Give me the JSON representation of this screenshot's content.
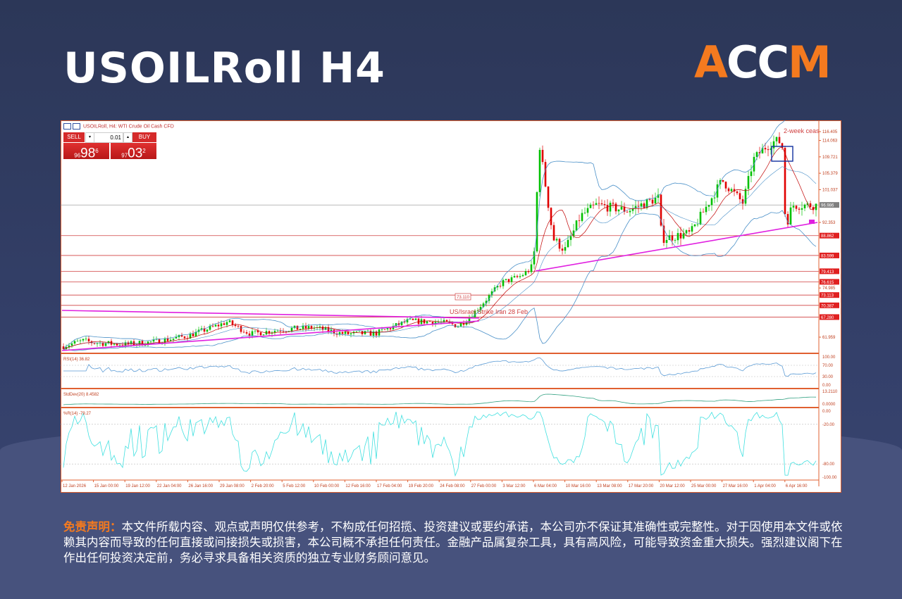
{
  "header": {
    "title": "USOILRoll H4",
    "logo_text": "ACCM"
  },
  "chart_header": {
    "symbol_label": "USOILRoll, H4:  WTI Crude Oil Cash CFD"
  },
  "trade_panel": {
    "sell_label": "SELL",
    "buy_label": "BUY",
    "lot": "0.01",
    "sell_price": {
      "prefix": "96",
      "big": "98",
      "sup": "6"
    },
    "buy_price": {
      "prefix": "97",
      "big": "03",
      "sup": "2"
    }
  },
  "colors": {
    "up": "#00c000",
    "down": "#e00000",
    "bands": "#4a90c8",
    "ma": "#c00000",
    "trendline": "#e020e0",
    "level": "#d04040",
    "rsi": "#5b9bd5",
    "wpr": "#40e0e0",
    "bg_title": "#2c3758",
    "accent": "#f47a1f"
  },
  "chart_data": {
    "type": "candlestick",
    "title": "USOILRoll H4",
    "timeframe": "H4",
    "price_axis": [
      "116.405",
      "114.063",
      "109.721",
      "105.379",
      "101.037",
      "92.353",
      "74.985",
      "61.959"
    ],
    "ylim": [
      58.5,
      117.5
    ],
    "current_price": "96.986",
    "levels": [
      "88.862",
      "83.599",
      "79.413",
      "76.615",
      "73.113",
      "70.387",
      "67.280"
    ],
    "x_ticks": [
      "12 Jan 2026",
      "15 Jan 00:00",
      "19 Jan 12:00",
      "22 Jan 04:00",
      "26 Jan 16:00",
      "29 Jan 08:00",
      "2 Feb 20:00",
      "5 Feb 12:00",
      "10 Feb 00:00",
      "12 Feb 16:00",
      "17 Feb 04:00",
      "19 Feb 20:00",
      "24 Feb 08:00",
      "27 Feb 00:00",
      "3 Mar 12:00",
      "6 Mar 04:00",
      "10 Mar 16:00",
      "13 Mar 08:00",
      "17 Mar 20:00",
      "20 Mar 12:00",
      "25 Mar 00:00",
      "27 Mar 16:00",
      "1 Apr 04:00",
      "6 Apr 16:00"
    ],
    "price_path": [
      {
        "date": "12 Jan 00:00",
        "price": 59.5
      },
      {
        "date": "14 Jan 00:00",
        "price": 61.0
      },
      {
        "date": "15 Jan 00:00",
        "price": 60.5
      },
      {
        "date": "19 Jan 12:00",
        "price": 60.0
      },
      {
        "date": "22 Jan 04:00",
        "price": 60.8
      },
      {
        "date": "26 Jan 16:00",
        "price": 62.3
      },
      {
        "date": "29 Jan 08:00",
        "price": 65.2
      },
      {
        "date": "30 Jan 12:00",
        "price": 66.0
      },
      {
        "date": "2 Feb 20:00",
        "price": 62.8
      },
      {
        "date": "5 Feb 12:00",
        "price": 64.0
      },
      {
        "date": "10 Feb 00:00",
        "price": 64.5
      },
      {
        "date": "12 Feb 16:00",
        "price": 62.8
      },
      {
        "date": "17 Feb 04:00",
        "price": 63.0
      },
      {
        "date": "19 Feb 20:00",
        "price": 66.2
      },
      {
        "date": "24 Feb 08:00",
        "price": 66.0
      },
      {
        "date": "26 Feb 00:00",
        "price": 65.0
      },
      {
        "date": "27 Feb 00:00",
        "price": 67.5
      },
      {
        "date": "2 Mar 00:00",
        "price": 73.5
      },
      {
        "date": "3 Mar 12:00",
        "price": 76.5
      },
      {
        "date": "5 Mar 00:00",
        "price": 78.0
      },
      {
        "date": "6 Mar 04:00",
        "price": 80.5
      },
      {
        "date": "6 Mar 16:00",
        "price": 100.0
      },
      {
        "date": "7 Mar 00:00",
        "price": 113.5
      },
      {
        "date": "9 Mar 00:00",
        "price": 88.0
      },
      {
        "date": "10 Mar 16:00",
        "price": 85.0
      },
      {
        "date": "12 Mar 00:00",
        "price": 94.0
      },
      {
        "date": "13 Mar 08:00",
        "price": 97.0
      },
      {
        "date": "17 Mar 20:00",
        "price": 95.5
      },
      {
        "date": "20 Mar 12:00",
        "price": 99.0
      },
      {
        "date": "20 Mar 20:00",
        "price": 88.0
      },
      {
        "date": "25 Mar 00:00",
        "price": 89.5
      },
      {
        "date": "27 Mar 16:00",
        "price": 103.5
      },
      {
        "date": "30 Mar 16:00",
        "price": 97.5
      },
      {
        "date": "1 Apr 04:00",
        "price": 109.0
      },
      {
        "date": "3 Apr 00:00",
        "price": 112.0
      },
      {
        "date": "5 Apr 00:00",
        "price": 114.0
      },
      {
        "date": "6 Apr 04:00",
        "price": 113.5
      },
      {
        "date": "6 Apr 16:00",
        "price": 95.0
      },
      {
        "date": "7 Apr 08:00",
        "price": 92.5
      },
      {
        "date": "7 Apr 20:00",
        "price": 96.9
      }
    ],
    "annotations": {
      "event": "US/Israel Strike Iran 28 Feb",
      "ceasefire": "2-week ceas",
      "price_tag": "73.110"
    },
    "indicators": {
      "rsi": {
        "label": "RSI(14) 36.82",
        "axis": [
          "100.00",
          "70.00",
          "30.00",
          "0.00"
        ],
        "levels": [
          70,
          30
        ]
      },
      "stddev": {
        "label": "StdDev(20) 8.4582",
        "axis": [
          "13.2110",
          "0.0000"
        ]
      },
      "wpr": {
        "label": "%R(14) -79.27",
        "axis": [
          "0.00",
          "-20.00",
          "-80.00",
          "-100.00"
        ],
        "levels": [
          -20,
          -80
        ]
      }
    }
  },
  "disclaimer": {
    "label": "免责声明：",
    "text": "本文件所载内容、观点或声明仅供参考，不构成任何招揽、投资建议或要约承诺，本公司亦不保证其准确性或完整性。对于因使用本文件或依赖其内容而导致的任何直接或间接损失或损害，本公司概不承担任何责任。金融产品属复杂工具，具有高风险，可能导致资金重大损失。强烈建议阁下在作出任何投资决定前，务必寻求具备相关资质的独立专业财务顾问意见。"
  }
}
